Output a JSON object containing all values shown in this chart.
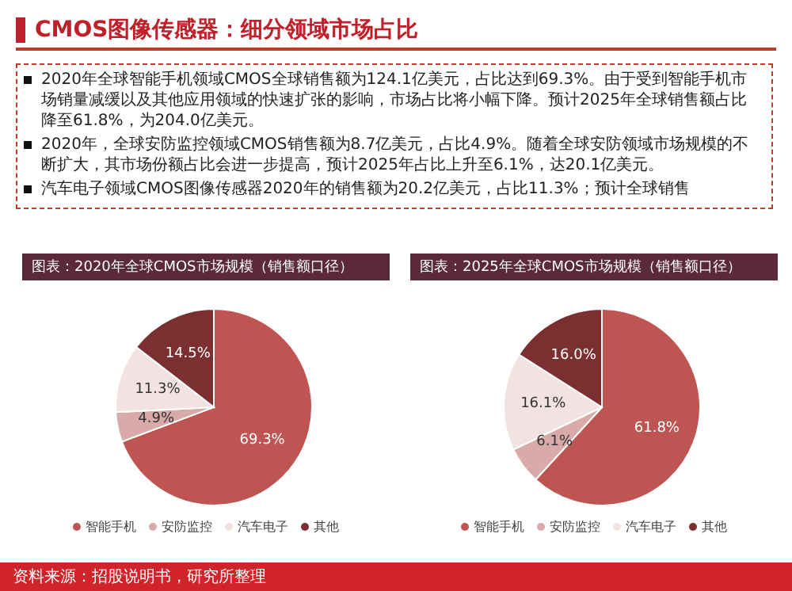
{
  "chart_data": [
    {
      "type": "other",
      "title": "CMOS图像传感器：细分领域市场占比",
      "annotations": [
        "2020年全球智能手机领域CMOS全球销售额为124.1亿美元，占比达到69.3%。由于受到智能手机市场销量减缓以及其他应用领域的快速扩张的影响，市场占比将小幅下降。预计2025年全球销售额占比降至61.8%，为204.0亿美元。",
        "2020年，全球安防监控领域CMOS销售额为8.7亿美元，占比4.9%。随着全球安防领域市场规模的不断扩大，其市场份额占比会进一步提高，预计2025年占比上升至6.1%，达20.1亿美元。",
        "汽车电子领域CMOS图像传感器2020年的销售额为20.2亿美元，占比11.3%；预计全球销售"
      ]
    },
    {
      "type": "pie",
      "title": "图表：2020年全球CMOS市场规模（销售额口径）",
      "categories": [
        "智能手机",
        "安防监控",
        "汽车电子",
        "其他"
      ],
      "values": [
        69.3,
        4.9,
        11.3,
        14.5
      ],
      "value_labels": [
        "69.3%",
        "4.9%",
        "11.3%",
        "14.5%"
      ],
      "colors": [
        "#bf5552",
        "#d8aaa9",
        "#f2e2e2",
        "#7b2f30"
      ],
      "legend": "bottom"
    },
    {
      "type": "pie",
      "title": "图表：2025年全球CMOS市场规模（销售额口径）",
      "categories": [
        "智能手机",
        "安防监控",
        "汽车电子",
        "其他"
      ],
      "values": [
        61.8,
        6.1,
        16.1,
        16.0
      ],
      "value_labels": [
        "61.8%",
        "6.1%",
        "16.1%",
        "16.0%"
      ],
      "colors": [
        "#bf5552",
        "#d8aaa9",
        "#f2e2e2",
        "#7b2f30"
      ],
      "legend": "bottom",
      "annotations": [
        "资料来源：招股说明书，研究所整理"
      ]
    }
  ]
}
